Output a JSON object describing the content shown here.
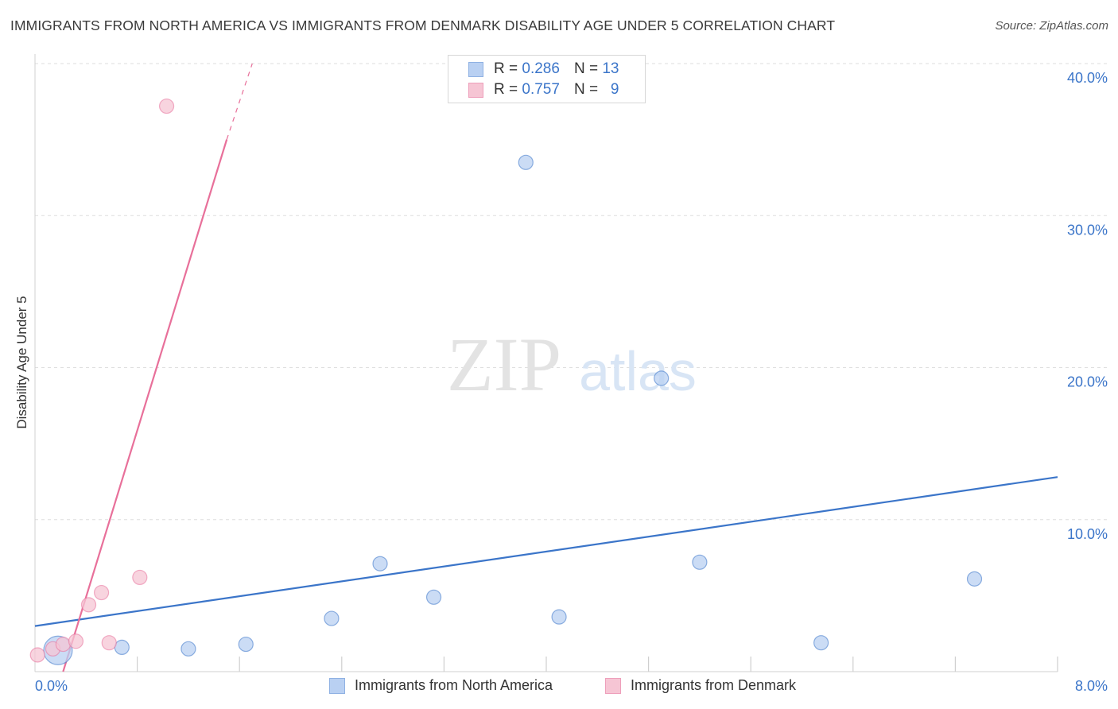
{
  "title": "IMMIGRANTS FROM NORTH AMERICA VS IMMIGRANTS FROM DENMARK DISABILITY AGE UNDER 5 CORRELATION CHART",
  "source": "Source: ZipAtlas.com",
  "watermark": {
    "zip": "ZIP",
    "atlas": "atlas"
  },
  "legend_top": [
    {
      "r_label": "R =",
      "r_value": "0.286",
      "n_label": "N =",
      "n_value": "13"
    },
    {
      "r_label": "R =",
      "r_value": "0.757",
      "n_label": "N =",
      "n_value": "9"
    }
  ],
  "legend_bottom": [
    {
      "label": "Immigrants from North America"
    },
    {
      "label": "Immigrants from Denmark"
    }
  ],
  "chart_data": {
    "type": "scatter",
    "ylabel": "Disability Age Under 5",
    "xlabel": "",
    "xlim": [
      0,
      8
    ],
    "ylim": [
      0,
      40
    ],
    "x_tick_labels": [
      "0.0%",
      "8.0%"
    ],
    "y_tick_labels": [
      "10.0%",
      "20.0%",
      "30.0%",
      "40.0%"
    ],
    "y_ticks": [
      10,
      20,
      30,
      40
    ],
    "x_minor_ticks": [
      0.8,
      1.6,
      2.4,
      3.2,
      4.0,
      4.8,
      5.6,
      6.4,
      7.2,
      8.0
    ],
    "grid": true,
    "series": [
      {
        "name": "Immigrants from North America",
        "color": "#3b75c9",
        "fill": "#b9d0f2",
        "points": [
          {
            "x": 0.18,
            "y": 1.4,
            "size": "large"
          },
          {
            "x": 0.68,
            "y": 1.6
          },
          {
            "x": 1.2,
            "y": 1.5
          },
          {
            "x": 1.65,
            "y": 1.8
          },
          {
            "x": 2.32,
            "y": 3.5
          },
          {
            "x": 2.7,
            "y": 7.1
          },
          {
            "x": 3.12,
            "y": 4.9
          },
          {
            "x": 3.84,
            "y": 33.5
          },
          {
            "x": 4.1,
            "y": 3.6
          },
          {
            "x": 4.9,
            "y": 19.3
          },
          {
            "x": 5.2,
            "y": 7.2
          },
          {
            "x": 6.15,
            "y": 1.9
          },
          {
            "x": 7.35,
            "y": 6.1
          }
        ],
        "trend": {
          "x0": 0,
          "y0": 3.0,
          "x1": 8.0,
          "y1": 12.8
        }
      },
      {
        "name": "Immigrants from Denmark",
        "color": "#e8709a",
        "fill": "#f6c5d4",
        "points": [
          {
            "x": 0.02,
            "y": 1.1
          },
          {
            "x": 0.14,
            "y": 1.5
          },
          {
            "x": 0.22,
            "y": 1.8
          },
          {
            "x": 0.32,
            "y": 2.0
          },
          {
            "x": 0.42,
            "y": 4.4
          },
          {
            "x": 0.52,
            "y": 5.2
          },
          {
            "x": 0.58,
            "y": 1.9
          },
          {
            "x": 0.82,
            "y": 6.2
          },
          {
            "x": 1.03,
            "y": 37.2
          }
        ],
        "trend": {
          "x0": 0.22,
          "y0": 0.0,
          "x1": 1.5,
          "y1": 35.0
        },
        "trend_dashed_to": {
          "x": 1.7,
          "y": 40.0
        }
      }
    ]
  }
}
